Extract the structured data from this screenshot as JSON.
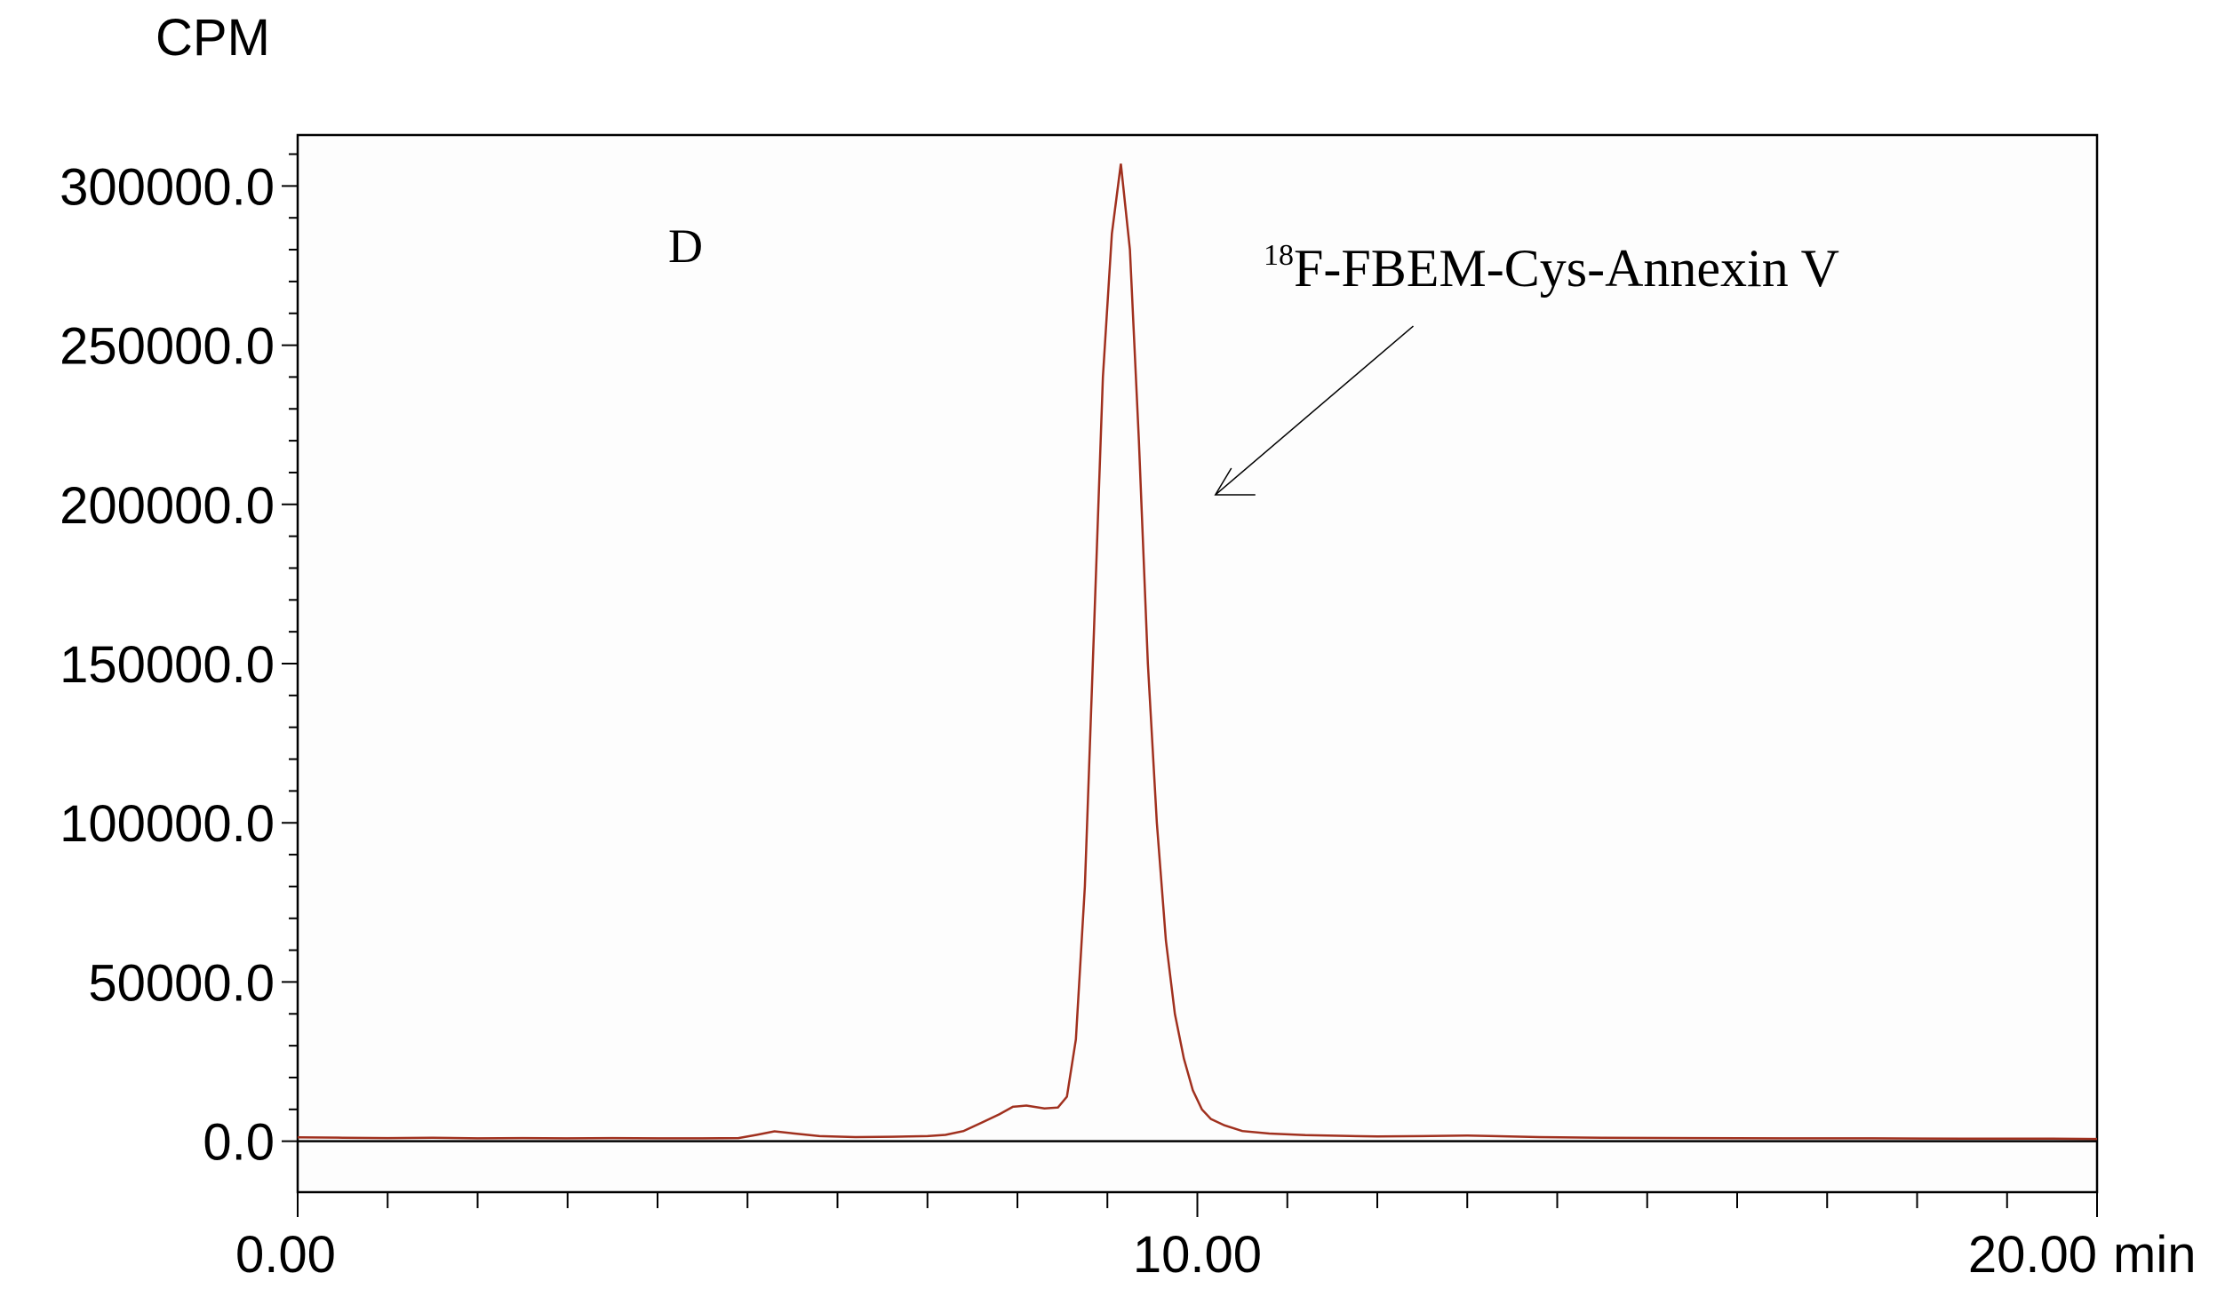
{
  "chart_data": {
    "type": "line",
    "title": "",
    "panel_label": "D",
    "ylabel": "CPM",
    "xunit": "min",
    "xlim": [
      0,
      20
    ],
    "ylim": [
      -16000,
      316000
    ],
    "xticks": [
      {
        "value": 0,
        "label": "0.00"
      },
      {
        "value": 10,
        "label": "10.00"
      },
      {
        "value": 20,
        "label": "20.00"
      }
    ],
    "yticks": [
      {
        "value": 0,
        "label": "0.0"
      },
      {
        "value": 50000,
        "label": "50000.0"
      },
      {
        "value": 100000,
        "label": "100000.0"
      },
      {
        "value": 150000,
        "label": "150000.0"
      },
      {
        "value": 200000,
        "label": "200000.0"
      },
      {
        "value": 250000,
        "label": "250000.0"
      },
      {
        "value": 300000,
        "label": "300000.0"
      }
    ],
    "annotation": {
      "superscript": "18",
      "text": "F-FBEM-Cys-Annexin V",
      "arrow_from": [
        12.4,
        256000
      ],
      "arrow_to": [
        10.2,
        203000
      ]
    },
    "line_color": "#a0301e",
    "grid": false,
    "series": [
      {
        "points": [
          [
            0.0,
            1200
          ],
          [
            0.5,
            1100
          ],
          [
            1.0,
            1000
          ],
          [
            1.5,
            1100
          ],
          [
            2.0,
            900
          ],
          [
            2.5,
            1000
          ],
          [
            3.0,
            900
          ],
          [
            3.5,
            1000
          ],
          [
            4.0,
            900
          ],
          [
            4.5,
            900
          ],
          [
            4.9,
            1000
          ],
          [
            5.1,
            2000
          ],
          [
            5.3,
            3100
          ],
          [
            5.5,
            2500
          ],
          [
            5.8,
            1600
          ],
          [
            6.2,
            1300
          ],
          [
            6.6,
            1400
          ],
          [
            7.0,
            1600
          ],
          [
            7.2,
            2000
          ],
          [
            7.4,
            3200
          ],
          [
            7.6,
            5800
          ],
          [
            7.8,
            8500
          ],
          [
            7.95,
            10800
          ],
          [
            8.1,
            11200
          ],
          [
            8.3,
            10300
          ],
          [
            8.45,
            10600
          ],
          [
            8.55,
            14000
          ],
          [
            8.65,
            32000
          ],
          [
            8.75,
            80000
          ],
          [
            8.85,
            160000
          ],
          [
            8.95,
            240000
          ],
          [
            9.05,
            285000
          ],
          [
            9.15,
            307000
          ],
          [
            9.25,
            280000
          ],
          [
            9.35,
            220000
          ],
          [
            9.45,
            150000
          ],
          [
            9.55,
            100000
          ],
          [
            9.65,
            63000
          ],
          [
            9.75,
            40000
          ],
          [
            9.85,
            26000
          ],
          [
            9.95,
            16000
          ],
          [
            10.05,
            10000
          ],
          [
            10.15,
            7000
          ],
          [
            10.3,
            5000
          ],
          [
            10.5,
            3200
          ],
          [
            10.8,
            2400
          ],
          [
            11.2,
            1900
          ],
          [
            12.0,
            1500
          ],
          [
            12.5,
            1600
          ],
          [
            13.0,
            1800
          ],
          [
            13.3,
            1600
          ],
          [
            13.8,
            1300
          ],
          [
            14.5,
            1100
          ],
          [
            15.5,
            1000
          ],
          [
            16.5,
            900
          ],
          [
            17.5,
            900
          ],
          [
            18.5,
            800
          ],
          [
            19.5,
            800
          ],
          [
            20.0,
            700
          ]
        ]
      }
    ]
  }
}
